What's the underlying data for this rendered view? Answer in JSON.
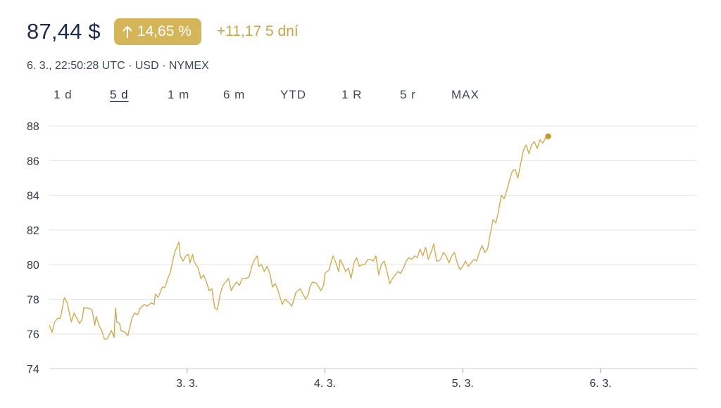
{
  "header": {
    "price": "87,44 $",
    "change_pct": "14,65 %",
    "change_abs": "+11,17 5 dní",
    "arrow_icon": "arrow-up-icon"
  },
  "meta": {
    "text": "6. 3., 22:50:28 UTC · USD · NYMEX"
  },
  "tabs": [
    {
      "label": "1 d",
      "active": false
    },
    {
      "label": "5 d",
      "active": true
    },
    {
      "label": "1 m",
      "active": false
    },
    {
      "label": "6 m",
      "active": false
    },
    {
      "label": "YTD",
      "active": false
    },
    {
      "label": "1 R",
      "active": false
    },
    {
      "label": "5 r",
      "active": false
    },
    {
      "label": "MAX",
      "active": false
    }
  ],
  "colors": {
    "accent": "#d4b55a",
    "line": "#d1ab52",
    "text": "#1c2c4a",
    "grid": "#e1e3e7"
  },
  "chart_data": {
    "type": "line",
    "title": "",
    "xlabel": "",
    "ylabel": "",
    "ylim": [
      74,
      88
    ],
    "yticks": [
      74,
      76,
      78,
      80,
      82,
      84,
      86,
      88
    ],
    "ytick_labels": [
      "74",
      "76",
      "78",
      "80",
      "82",
      "84",
      "86",
      "88"
    ],
    "xlim": [
      2,
      6.7
    ],
    "xticks": [
      3,
      4,
      5,
      6
    ],
    "xtick_labels": [
      "3. 3.",
      "4. 3.",
      "5. 3.",
      "6. 3."
    ],
    "grid": true,
    "end_marker": true,
    "series": [
      {
        "values": [
          [
            2.0,
            76.5
          ],
          [
            2.02,
            76.1
          ],
          [
            2.04,
            76.7
          ],
          [
            2.06,
            76.9
          ],
          [
            2.08,
            76.9
          ],
          [
            2.11,
            78.1
          ],
          [
            2.13,
            77.8
          ],
          [
            2.16,
            76.7
          ],
          [
            2.18,
            77.2
          ],
          [
            2.22,
            76.6
          ],
          [
            2.24,
            76.9
          ],
          [
            2.25,
            77.5
          ],
          [
            2.28,
            77.5
          ],
          [
            2.31,
            77.4
          ],
          [
            2.33,
            76.5
          ],
          [
            2.34,
            77.0
          ],
          [
            2.36,
            76.5
          ],
          [
            2.38,
            76.2
          ],
          [
            2.4,
            75.7
          ],
          [
            2.42,
            75.7
          ],
          [
            2.45,
            76.2
          ],
          [
            2.47,
            75.8
          ],
          [
            2.48,
            77.5
          ],
          [
            2.49,
            76.7
          ],
          [
            2.51,
            76.6
          ],
          [
            2.52,
            76.2
          ],
          [
            2.55,
            76.1
          ],
          [
            2.57,
            75.9
          ],
          [
            2.6,
            76.9
          ],
          [
            2.62,
            77.2
          ],
          [
            2.64,
            77.1
          ],
          [
            2.66,
            77.5
          ],
          [
            2.69,
            77.7
          ],
          [
            2.71,
            77.6
          ],
          [
            2.74,
            77.8
          ],
          [
            2.76,
            77.7
          ],
          [
            2.77,
            78.3
          ],
          [
            2.79,
            78.1
          ],
          [
            2.82,
            78.7
          ],
          [
            2.84,
            78.7
          ],
          [
            2.86,
            79.2
          ],
          [
            2.88,
            79.6
          ],
          [
            2.89,
            80.0
          ],
          [
            2.91,
            80.7
          ],
          [
            2.94,
            81.3
          ],
          [
            2.95,
            80.5
          ],
          [
            2.97,
            80.2
          ],
          [
            2.99,
            80.5
          ],
          [
            3.01,
            80.6
          ],
          [
            3.02,
            80.1
          ],
          [
            3.04,
            80.6
          ],
          [
            3.05,
            80.2
          ],
          [
            3.08,
            79.8
          ],
          [
            3.1,
            79.2
          ],
          [
            3.12,
            79.4
          ],
          [
            3.14,
            79.0
          ],
          [
            3.16,
            78.5
          ],
          [
            3.18,
            78.6
          ],
          [
            3.2,
            77.5
          ],
          [
            3.22,
            77.4
          ],
          [
            3.24,
            78.3
          ],
          [
            3.26,
            78.8
          ],
          [
            3.28,
            79.0
          ],
          [
            3.3,
            79.2
          ],
          [
            3.32,
            78.5
          ],
          [
            3.34,
            78.8
          ],
          [
            3.36,
            79.0
          ],
          [
            3.38,
            78.8
          ],
          [
            3.4,
            79.2
          ],
          [
            3.43,
            79.2
          ],
          [
            3.45,
            79.3
          ],
          [
            3.47,
            79.9
          ],
          [
            3.49,
            80.3
          ],
          [
            3.51,
            80.5
          ],
          [
            3.52,
            79.9
          ],
          [
            3.54,
            80.0
          ],
          [
            3.56,
            79.6
          ],
          [
            3.58,
            79.9
          ],
          [
            3.6,
            79.5
          ],
          [
            3.62,
            78.7
          ],
          [
            3.64,
            78.9
          ],
          [
            3.66,
            78.5
          ],
          [
            3.69,
            77.7
          ],
          [
            3.71,
            78.0
          ],
          [
            3.74,
            77.8
          ],
          [
            3.76,
            77.6
          ],
          [
            3.79,
            78.4
          ],
          [
            3.82,
            78.6
          ],
          [
            3.84,
            78.3
          ],
          [
            3.86,
            78.0
          ],
          [
            3.88,
            78.3
          ],
          [
            3.89,
            78.7
          ],
          [
            3.91,
            79.0
          ],
          [
            3.94,
            78.9
          ],
          [
            3.97,
            78.5
          ],
          [
            3.99,
            78.8
          ],
          [
            4.0,
            79.5
          ],
          [
            4.03,
            79.7
          ],
          [
            4.05,
            80.3
          ],
          [
            4.06,
            80.5
          ],
          [
            4.08,
            80.1
          ],
          [
            4.1,
            79.6
          ],
          [
            4.11,
            80.3
          ],
          [
            4.13,
            80.0
          ],
          [
            4.15,
            79.6
          ],
          [
            4.17,
            79.8
          ],
          [
            4.19,
            79.2
          ],
          [
            4.21,
            80.1
          ],
          [
            4.23,
            80.4
          ],
          [
            4.25,
            79.9
          ],
          [
            4.27,
            80.0
          ],
          [
            4.29,
            80.0
          ],
          [
            4.31,
            80.3
          ],
          [
            4.33,
            80.3
          ],
          [
            4.35,
            80.2
          ],
          [
            4.37,
            80.5
          ],
          [
            4.39,
            79.4
          ],
          [
            4.41,
            80.0
          ],
          [
            4.43,
            80.2
          ],
          [
            4.45,
            79.6
          ],
          [
            4.47,
            78.9
          ],
          [
            4.49,
            79.2
          ],
          [
            4.51,
            79.4
          ],
          [
            4.53,
            79.6
          ],
          [
            4.55,
            79.5
          ],
          [
            4.57,
            79.8
          ],
          [
            4.59,
            80.2
          ],
          [
            4.61,
            80.4
          ],
          [
            4.63,
            80.3
          ],
          [
            4.65,
            80.5
          ],
          [
            4.67,
            80.4
          ],
          [
            4.69,
            80.9
          ],
          [
            4.71,
            80.5
          ],
          [
            4.73,
            81.0
          ],
          [
            4.75,
            80.3
          ],
          [
            4.77,
            80.7
          ],
          [
            4.79,
            81.2
          ],
          [
            4.81,
            80.2
          ],
          [
            4.82,
            80.2
          ],
          [
            4.84,
            80.3
          ],
          [
            4.86,
            80.7
          ],
          [
            4.88,
            80.5
          ],
          [
            4.9,
            80.1
          ],
          [
            4.92,
            80.5
          ],
          [
            4.94,
            80.7
          ],
          [
            4.96,
            80.1
          ],
          [
            4.98,
            79.7
          ],
          [
            5.0,
            79.9
          ],
          [
            5.02,
            80.2
          ],
          [
            5.04,
            79.9
          ],
          [
            5.06,
            80.1
          ],
          [
            5.08,
            80.3
          ],
          [
            5.1,
            80.2
          ],
          [
            5.12,
            80.7
          ],
          [
            5.14,
            81.1
          ],
          [
            5.16,
            80.7
          ],
          [
            5.18,
            80.9
          ],
          [
            5.2,
            81.8
          ],
          [
            5.22,
            82.6
          ],
          [
            5.24,
            82.4
          ],
          [
            5.26,
            83.1
          ],
          [
            5.28,
            84.0
          ],
          [
            5.3,
            83.8
          ],
          [
            5.32,
            84.3
          ],
          [
            5.34,
            84.9
          ],
          [
            5.36,
            85.4
          ],
          [
            5.38,
            85.5
          ],
          [
            5.4,
            85.0
          ],
          [
            5.42,
            85.8
          ],
          [
            5.44,
            86.6
          ],
          [
            5.46,
            86.9
          ],
          [
            5.48,
            86.4
          ],
          [
            5.5,
            86.9
          ],
          [
            5.52,
            87.1
          ],
          [
            5.54,
            86.7
          ],
          [
            5.56,
            87.2
          ],
          [
            5.58,
            87.0
          ],
          [
            5.6,
            87.3
          ],
          [
            5.62,
            87.4
          ]
        ]
      }
    ]
  }
}
